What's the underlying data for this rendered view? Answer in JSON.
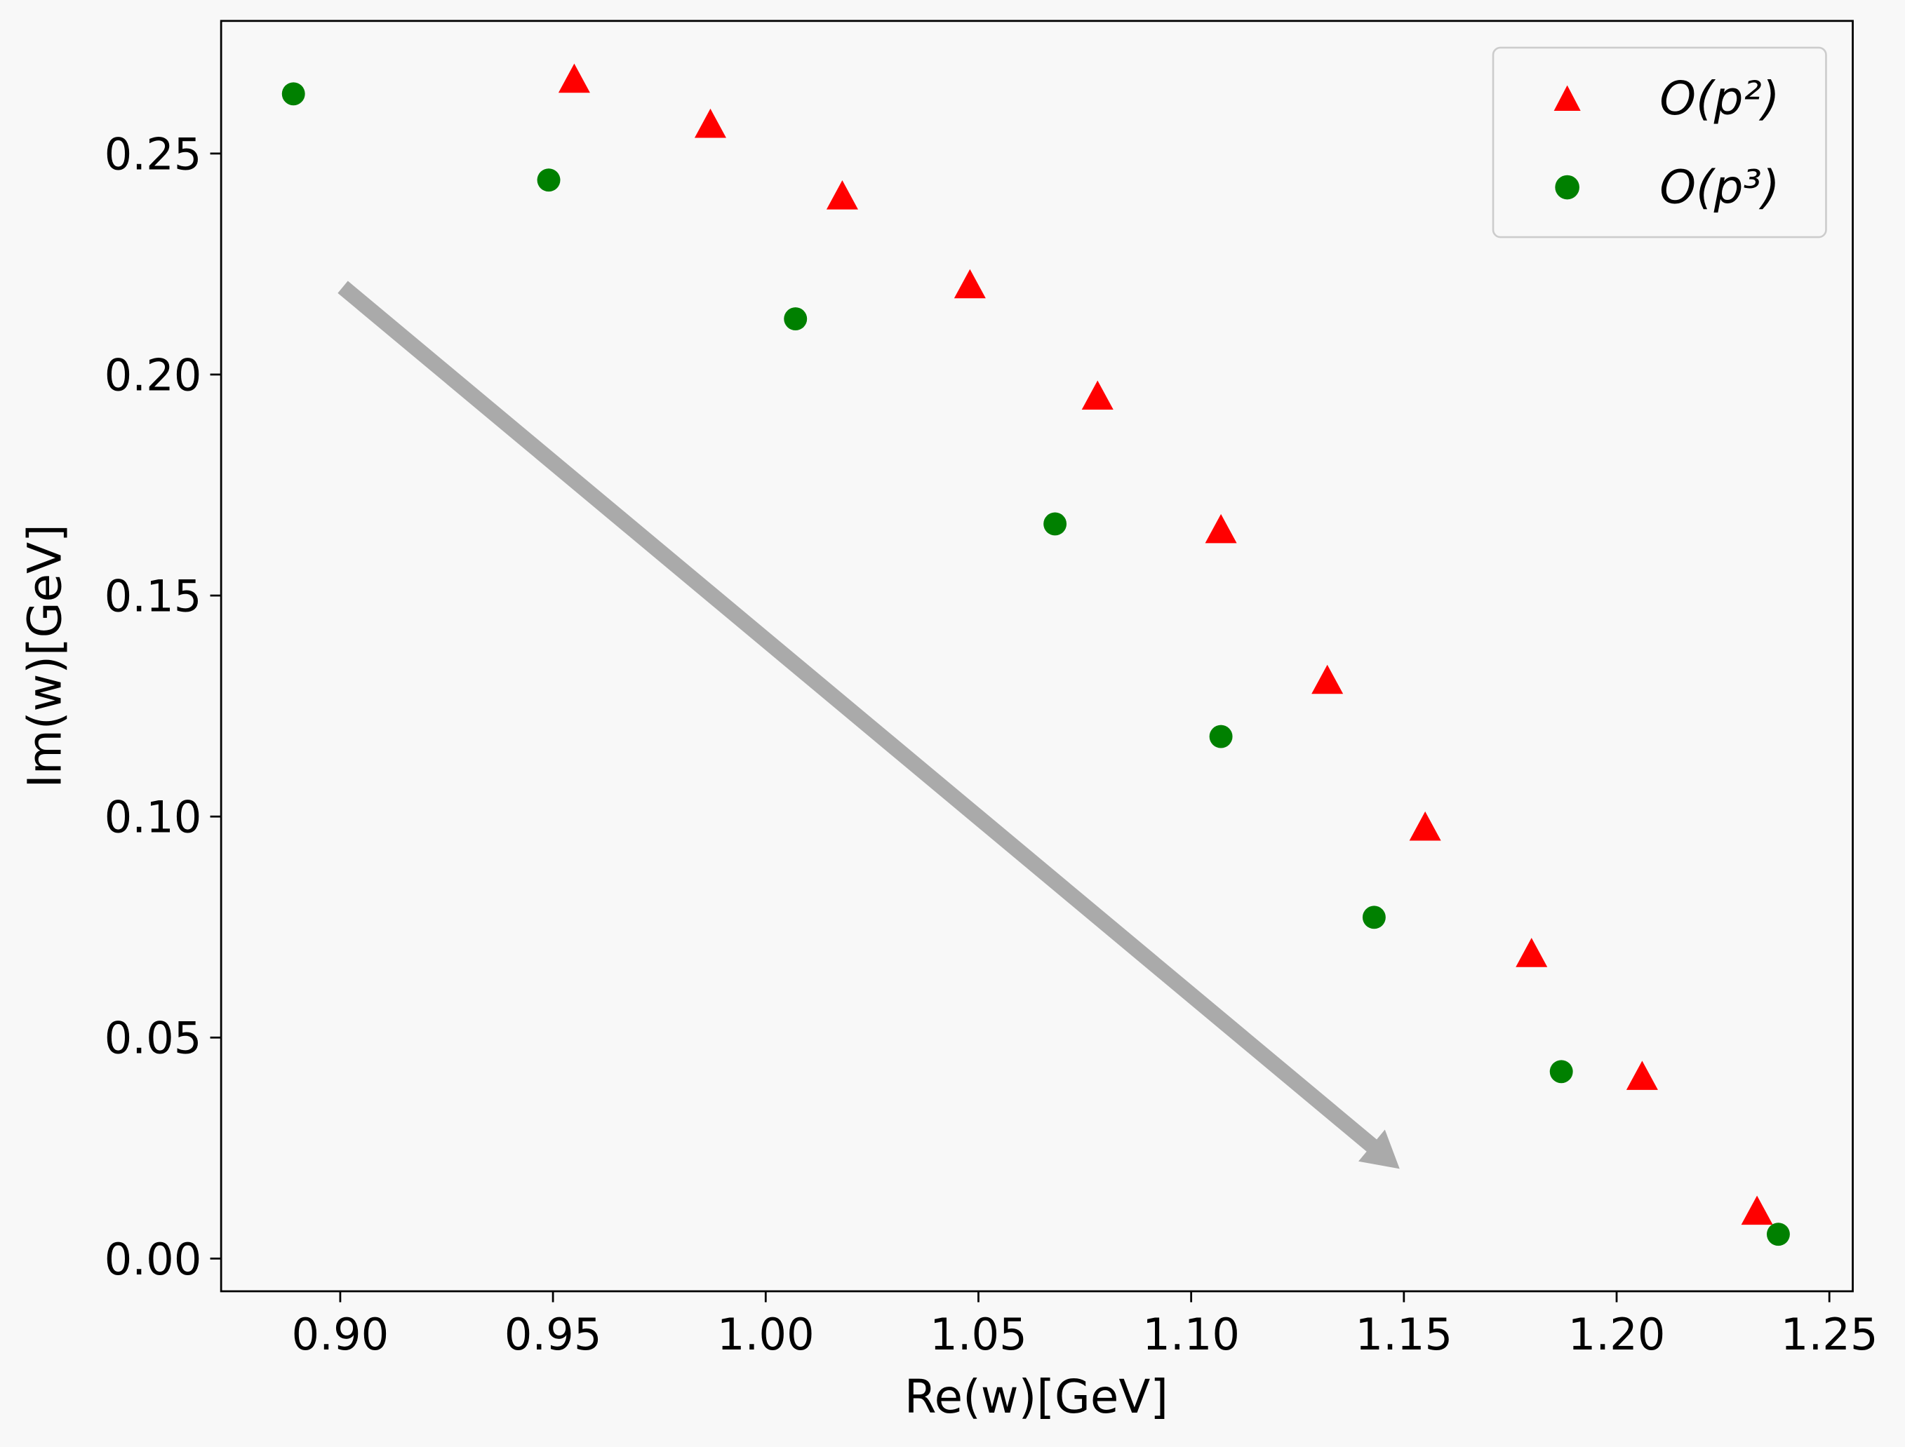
{
  "chart_data": {
    "type": "scatter",
    "xlabel": "Re(w)[GeV]",
    "ylabel": "Im(w)[GeV]",
    "xlim": [
      0.872,
      1.2555
    ],
    "ylim": [
      -0.0074,
      0.28
    ],
    "xticks": [
      "0.90",
      "0.95",
      "1.00",
      "1.05",
      "1.10",
      "1.15",
      "1.20",
      "1.25"
    ],
    "yticks": [
      "0.00",
      "0.05",
      "0.10",
      "0.15",
      "0.20",
      "0.25"
    ],
    "grid": false,
    "legend_position": "top-right",
    "series": [
      {
        "name": "O(p²)",
        "marker": "triangle",
        "color": "#ff0000",
        "x": [
          0.955,
          0.987,
          1.018,
          1.048,
          1.078,
          1.107,
          1.132,
          1.155,
          1.18,
          1.206,
          1.233
        ],
        "y": [
          0.2665,
          0.2563,
          0.2401,
          0.22,
          0.1948,
          0.1646,
          0.1305,
          0.0973,
          0.0687,
          0.0409,
          0.0104
        ]
      },
      {
        "name": "O(p³)",
        "marker": "circle",
        "color": "#008000",
        "x": [
          0.889,
          0.949,
          1.007,
          1.068,
          1.107,
          1.143,
          1.187,
          1.238
        ],
        "y": [
          0.2635,
          0.244,
          0.2126,
          0.1662,
          0.1181,
          0.0772,
          0.0423,
          0.0055
        ]
      }
    ],
    "annotations": [
      {
        "type": "arrow",
        "from": [
          0.9006,
          0.2198
        ],
        "to": [
          1.149,
          0.0203
        ],
        "color": "#aaaaaa"
      }
    ]
  }
}
